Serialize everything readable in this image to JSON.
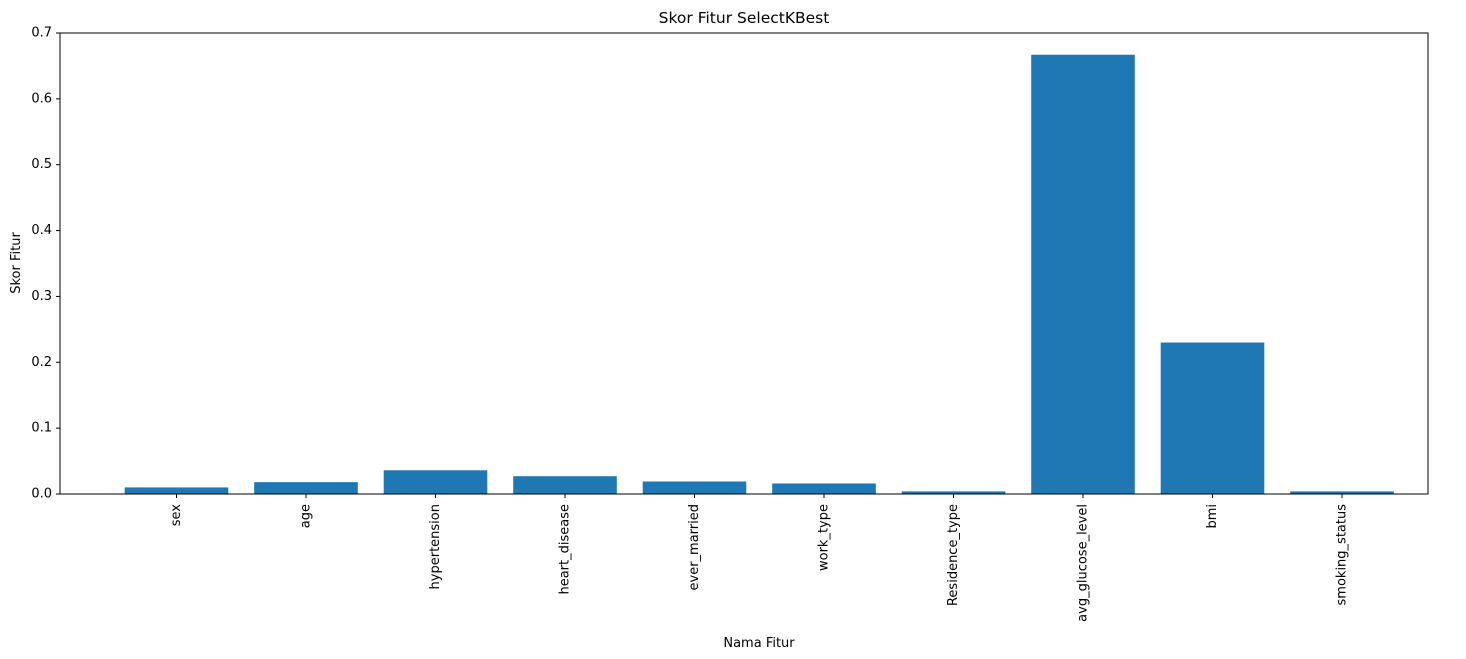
{
  "chart_data": {
    "type": "bar",
    "title": "Skor Fitur SelectKBest",
    "xlabel": "Nama Fitur",
    "ylabel": "Skor Fitur",
    "categories": [
      "sex",
      "age",
      "hypertension",
      "heart_disease",
      "ever_married",
      "work_type",
      "Residence_type",
      "avg_glucose_level",
      "bmi",
      "smoking_status"
    ],
    "values": [
      0.01,
      0.018,
      0.036,
      0.027,
      0.019,
      0.016,
      0.004,
      0.667,
      0.23,
      0.004
    ],
    "ylim": [
      0,
      0.7
    ],
    "yticks": [
      0.0,
      0.1,
      0.2,
      0.3,
      0.4,
      0.5,
      0.6,
      0.7
    ],
    "ytick_labels": [
      "0.0",
      "0.1",
      "0.2",
      "0.3",
      "0.4",
      "0.5",
      "0.6",
      "0.7"
    ],
    "bar_color": "#1f77b4",
    "grid": false,
    "legend": "none"
  }
}
